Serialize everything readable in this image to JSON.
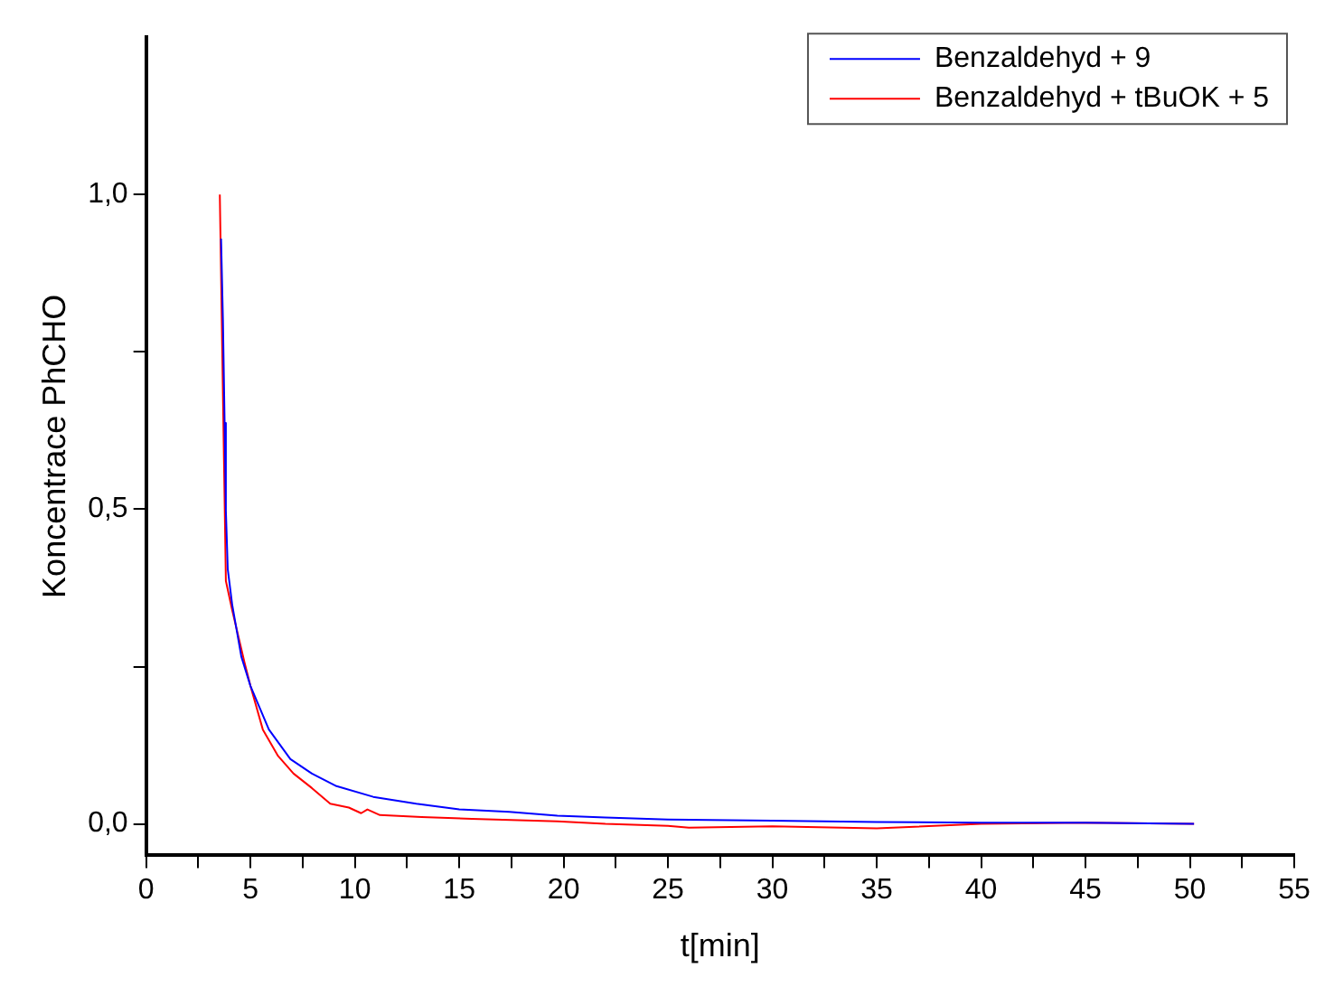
{
  "chart_data": {
    "type": "line",
    "xlabel": "t[min]",
    "ylabel": "Koncentrace PhCHO",
    "xlim": [
      0,
      55
    ],
    "ylim": [
      -0.05,
      1.25
    ],
    "xticks": [
      0,
      {
        "value": 2.5,
        "label": null
      },
      5,
      {
        "value": 7.5,
        "label": null
      },
      10,
      {
        "value": 12.5,
        "label": null
      },
      15,
      {
        "value": 17.5,
        "label": null
      },
      20,
      {
        "value": 22.5,
        "label": null
      },
      25,
      {
        "value": 27.5,
        "label": null
      },
      30,
      {
        "value": 32.5,
        "label": null
      },
      35,
      {
        "value": 37.5,
        "label": null
      },
      40,
      {
        "value": 42.5,
        "label": null
      },
      45,
      {
        "value": 47.5,
        "label": null
      },
      50,
      {
        "value": 52.5,
        "label": null
      },
      55
    ],
    "yticks": [
      {
        "value": 0,
        "label": "0,0"
      },
      {
        "value": 0.25,
        "label": null
      },
      {
        "value": 0.5,
        "label": "0,5"
      },
      {
        "value": 0.75,
        "label": null
      },
      {
        "value": 1,
        "label": "1,0"
      }
    ],
    "grid": false,
    "legend": "top right",
    "marker": "none",
    "line_style": "solid",
    "series": [
      {
        "name": "Benzaldehyd + 9",
        "color": "#0000ff",
        "x": [
          3.59,
          3.68,
          3.76,
          3.82,
          3.91,
          4.12,
          4.56,
          5.0,
          5.88,
          6.91,
          7.94,
          9.12,
          10.88,
          12.94,
          15.0,
          17.4,
          19.7,
          22.0,
          25,
          30,
          35,
          40,
          45,
          50.2
        ],
        "values": [
          0.93,
          0.8,
          0.637,
          0.498,
          0.405,
          0.349,
          0.266,
          0.219,
          0.15,
          0.103,
          0.08,
          0.06,
          0.043,
          0.032,
          0.023,
          0.019,
          0.013,
          0.01,
          0.007,
          0.005,
          0.003,
          0.002,
          0.002,
          0.0
        ]
      },
      {
        "name": "Benzaldehyd + tBuOK + 5",
        "color": "#ff0000",
        "x": [
          3.53,
          3.82,
          4.12,
          4.71,
          5.0,
          5.59,
          6.32,
          7.06,
          7.94,
          8.82,
          9.71,
          10.3,
          10.6,
          11.2,
          13.2,
          15.6,
          19.7,
          22.0,
          25,
          26,
          30,
          35,
          40,
          45,
          50.2
        ],
        "values": [
          1.0,
          0.386,
          0.34,
          0.257,
          0.219,
          0.15,
          0.108,
          0.08,
          0.057,
          0.032,
          0.026,
          0.017,
          0.023,
          0.014,
          0.011,
          0.008,
          0.004,
          0.0,
          -0.003,
          -0.006,
          -0.004,
          -0.007,
          0.0,
          0.002,
          0.0
        ]
      }
    ]
  }
}
